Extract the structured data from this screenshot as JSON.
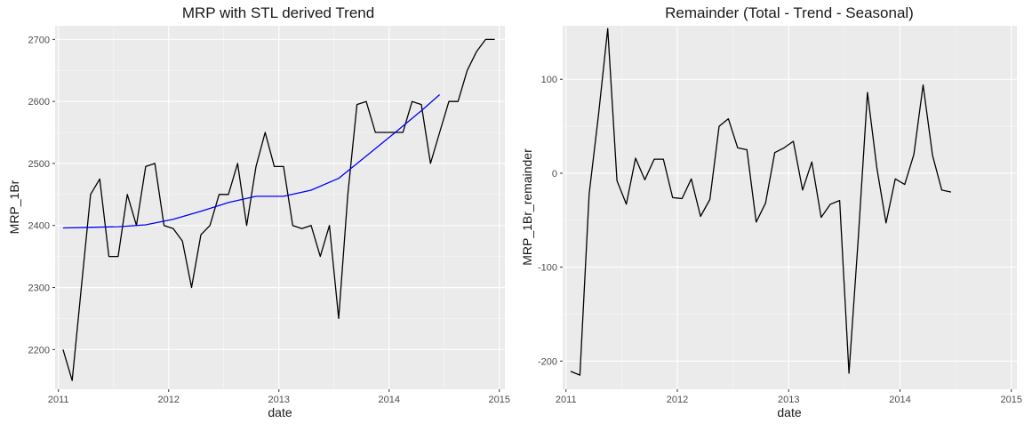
{
  "chart_data": [
    {
      "type": "line",
      "title": "MRP with STL derived Trend",
      "xlabel": "date",
      "ylabel": "MRP_1Br",
      "xlim": [
        2010.97,
        2015.05
      ],
      "ylim": [
        2136,
        2722
      ],
      "x_ticks": [
        2011,
        2012,
        2013,
        2014,
        2015
      ],
      "y_ticks": [
        2200,
        2300,
        2400,
        2500,
        2600,
        2700
      ],
      "grid": true,
      "series": [
        {
          "color": "#000000",
          "x": [
            2011.042,
            2011.125,
            2011.208,
            2011.292,
            2011.375,
            2011.458,
            2011.542,
            2011.625,
            2011.708,
            2011.792,
            2011.875,
            2011.958,
            2012.042,
            2012.125,
            2012.208,
            2012.292,
            2012.375,
            2012.458,
            2012.542,
            2012.625,
            2012.708,
            2012.792,
            2012.875,
            2012.958,
            2013.042,
            2013.125,
            2013.208,
            2013.292,
            2013.375,
            2013.458,
            2013.542,
            2013.625,
            2013.708,
            2013.792,
            2013.875,
            2013.958,
            2014.042,
            2014.125,
            2014.208,
            2014.292,
            2014.375,
            2014.458,
            2014.542,
            2014.625,
            2014.708,
            2014.792,
            2014.875,
            2014.958
          ],
          "values": [
            2200,
            2150,
            2300,
            2450,
            2475,
            2350,
            2350,
            2450,
            2400,
            2495,
            2500,
            2400,
            2395,
            2375,
            2300,
            2385,
            2400,
            2450,
            2450,
            2500,
            2400,
            2495,
            2550,
            2495,
            2495,
            2400,
            2395,
            2400,
            2350,
            2400,
            2250,
            2450,
            2595,
            2600,
            2550,
            2550,
            2550,
            2550,
            2600,
            2595,
            2500,
            2550,
            2600,
            2600,
            2650,
            2680,
            2700,
            2700
          ]
        },
        {
          "color": "#0000ff",
          "x": [
            2011.042,
            2011.292,
            2011.542,
            2011.792,
            2012.042,
            2012.292,
            2012.542,
            2012.792,
            2013.042,
            2013.292,
            2013.542,
            2013.792,
            2014.042,
            2014.292,
            2014.458
          ],
          "values": [
            2396,
            2397,
            2398,
            2401,
            2410,
            2423,
            2437,
            2447,
            2447,
            2457,
            2476,
            2512,
            2548,
            2585,
            2611
          ]
        }
      ]
    },
    {
      "type": "line",
      "title": "Remainder (Total - Trend - Seasonal)",
      "xlabel": "date",
      "ylabel": "MRP_1Br_remainder",
      "xlim": [
        2010.97,
        2015.05
      ],
      "ylim": [
        -230,
        157
      ],
      "x_ticks": [
        2011,
        2012,
        2013,
        2014,
        2015
      ],
      "y_ticks": [
        -200,
        -100,
        0,
        100
      ],
      "grid": true,
      "series": [
        {
          "color": "#000000",
          "x": [
            2011.042,
            2011.125,
            2011.208,
            2011.292,
            2011.375,
            2011.458,
            2011.542,
            2011.625,
            2011.708,
            2011.792,
            2011.875,
            2011.958,
            2012.042,
            2012.125,
            2012.208,
            2012.292,
            2012.375,
            2012.458,
            2012.542,
            2012.625,
            2012.708,
            2012.792,
            2012.875,
            2012.958,
            2013.042,
            2013.125,
            2013.208,
            2013.292,
            2013.375,
            2013.458,
            2013.542,
            2013.625,
            2013.708,
            2013.792,
            2013.875,
            2013.958,
            2014.042,
            2014.125,
            2014.208,
            2014.292,
            2014.375,
            2014.458
          ],
          "values": [
            -211,
            -215,
            -22,
            62,
            154,
            -8,
            -33,
            16,
            -7,
            15,
            15,
            -26,
            -27,
            -6,
            -46,
            -28,
            50,
            58,
            27,
            25,
            -52,
            -32,
            22,
            27,
            34,
            -18,
            12,
            -47,
            -33,
            -29,
            -213,
            -70,
            86,
            6,
            -53,
            -6,
            -12,
            20,
            94,
            19,
            -18,
            -20
          ]
        }
      ]
    }
  ]
}
